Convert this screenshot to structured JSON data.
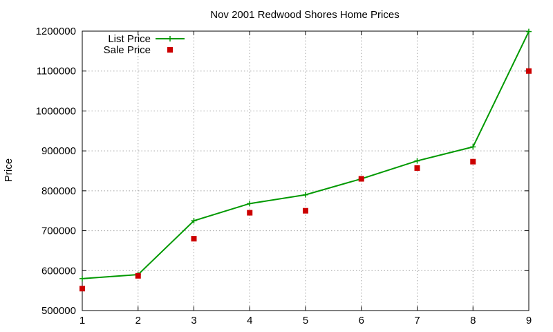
{
  "chart_data": {
    "type": "line",
    "title": "Nov 2001 Redwood Shores Home Prices",
    "xlabel": "",
    "ylabel": "Price",
    "x": [
      1,
      2,
      3,
      4,
      5,
      6,
      7,
      8,
      9
    ],
    "xlim": [
      1,
      9
    ],
    "ylim": [
      500000,
      1200000
    ],
    "xticks": [
      1,
      2,
      3,
      4,
      5,
      6,
      7,
      8,
      9
    ],
    "yticks": [
      500000,
      600000,
      700000,
      800000,
      900000,
      1000000,
      1100000,
      1200000
    ],
    "grid": true,
    "legend_position": "top-left",
    "series": [
      {
        "name": "List Price",
        "style": "linespoints",
        "marker": "plus",
        "color": "#009900",
        "values": [
          580000,
          590000,
          725000,
          768000,
          790000,
          830000,
          875000,
          910000,
          1199000
        ]
      },
      {
        "name": "Sale Price",
        "style": "points",
        "marker": "square",
        "color": "#cc0000",
        "values": [
          555000,
          587000,
          680000,
          745000,
          750000,
          830000,
          857000,
          873000,
          1100000
        ]
      }
    ]
  }
}
